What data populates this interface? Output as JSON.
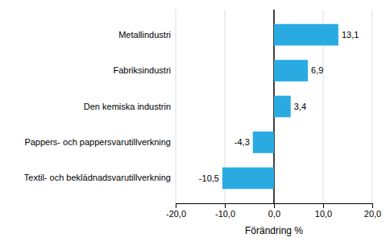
{
  "chart_data": {
    "type": "bar",
    "orientation": "horizontal",
    "categories": [
      "Textil- och beklädnadsvarutillverkning",
      "Pappers- och pappersvarutillverkning",
      "Den kemiska industrin",
      "Fabriksindustri",
      "Metallindustri"
    ],
    "values": [
      -10.5,
      -4.3,
      3.4,
      6.9,
      13.1
    ],
    "value_labels": [
      "-10,5",
      "-4,3",
      "3,4",
      "6,9",
      "13,1"
    ],
    "data_labels": true,
    "color": "#29abe2",
    "xlabel": "Förändring %",
    "xlim": [
      -20,
      20
    ],
    "xticks": [
      {
        "value": -20,
        "label": "-20,0"
      },
      {
        "value": -10,
        "label": "-10,0"
      },
      {
        "value": 0,
        "label": "0,0"
      },
      {
        "value": 10,
        "label": "10,0"
      },
      {
        "value": 20,
        "label": "20,0"
      }
    ],
    "grid": true
  }
}
